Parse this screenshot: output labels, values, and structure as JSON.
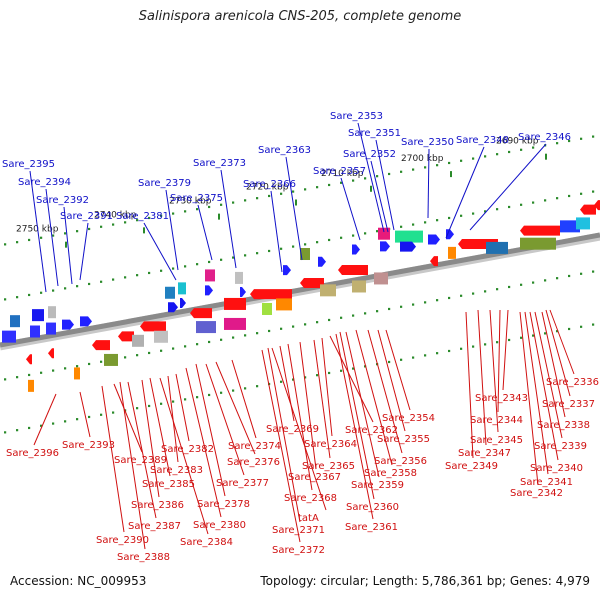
{
  "title": "Salinispora arenicola CNS-205, complete genome",
  "footer": {
    "accession": "Accession: NC_009953",
    "summary": "Topology: circular; Length: 5,786,361 bp; Genes: 4,979"
  },
  "colors": {
    "forward_label": "#1010c8",
    "reverse_label": "#d01010",
    "backbone": "#8a8a8a",
    "tick": "#2a8a2a"
  },
  "ruler": [
    "2690 kbp",
    "2700 kbp",
    "2710 kbp",
    "2720 kbp",
    "2730 kbp",
    "2740 kbp",
    "2750 kbp"
  ],
  "forward_genes": [
    "Sare_2346",
    "Sare_2348",
    "Sare_2350",
    "Sare_2351",
    "Sare_2352",
    "Sare_2353",
    "Sare_2357",
    "Sare_2363",
    "Sare_2366",
    "Sare_2373",
    "Sare_2375",
    "Sare_2379",
    "Sare_2381",
    "Sare_2391",
    "Sare_2392",
    "Sare_2394",
    "Sare_2395"
  ],
  "reverse_genes": [
    "Sare_2336",
    "Sare_2337",
    "Sare_2338",
    "Sare_2339",
    "Sare_2340",
    "Sare_2341",
    "Sare_2342",
    "Sare_2343",
    "Sare_2344",
    "Sare_2345",
    "Sare_2347",
    "Sare_2349",
    "Sare_2354",
    "Sare_2355",
    "Sare_2356",
    "Sare_2358",
    "Sare_2359",
    "Sare_2360",
    "Sare_2361",
    "Sare_2362",
    "Sare_2364",
    "Sare_2365",
    "Sare_2367",
    "Sare_2368",
    "Sare_2369",
    "tatA",
    "Sare_2371",
    "Sare_2372",
    "Sare_2374",
    "Sare_2376",
    "Sare_2377",
    "Sare_2378",
    "Sare_2380",
    "Sare_2382",
    "Sare_2383",
    "Sare_2384",
    "Sare_2385",
    "Sare_2386",
    "Sare_2387",
    "Sare_2388",
    "Sare_2389",
    "Sare_2390",
    "Sare_2393",
    "Sare_2396"
  ]
}
